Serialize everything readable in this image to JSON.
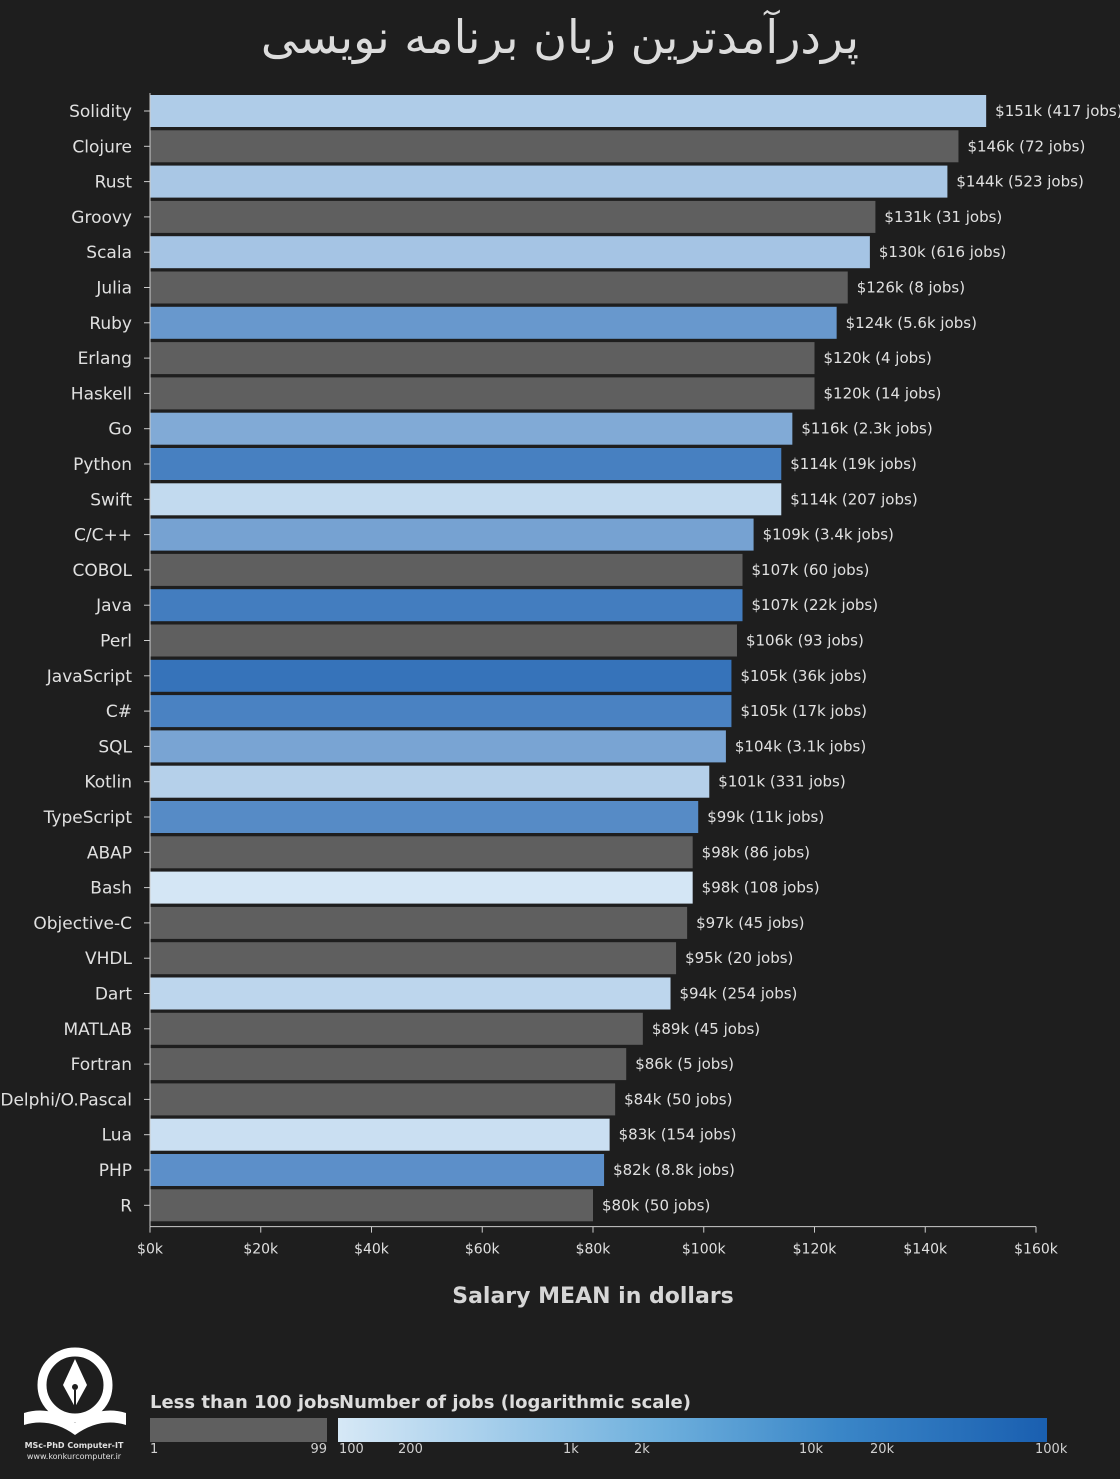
{
  "title": "پردرآمدترین زبان برنامه نویسی",
  "chart_data": {
    "type": "bar",
    "orientation": "horizontal",
    "title": "پردرآمدترین زبان برنامه نویسی",
    "xlabel": "Salary MEAN in dollars",
    "ylabel": "",
    "xlim": [
      0,
      160
    ],
    "x_unit": "thousand dollars",
    "x_ticks": [
      "$0k",
      "$20k",
      "$40k",
      "$60k",
      "$80k",
      "$100k",
      "$120k",
      "$140k",
      "$160k"
    ],
    "x_tick_values": [
      0,
      20,
      40,
      60,
      80,
      100,
      120,
      140,
      160
    ],
    "categories": [
      "Solidity",
      "Clojure",
      "Rust",
      "Groovy",
      "Scala",
      "Julia",
      "Ruby",
      "Erlang",
      "Haskell",
      "Go",
      "Python",
      "Swift",
      "C/C++",
      "COBOL",
      "Java",
      "Perl",
      "JavaScript",
      "C#",
      "SQL",
      "Kotlin",
      "TypeScript",
      "ABAP",
      "Bash",
      "Objective-C",
      "VHDL",
      "Dart",
      "MATLAB",
      "Fortran",
      "Delphi/O.Pascal",
      "Lua",
      "PHP",
      "R"
    ],
    "values": [
      151,
      146,
      144,
      131,
      130,
      126,
      124,
      120,
      120,
      116,
      114,
      114,
      109,
      107,
      107,
      106,
      105,
      105,
      104,
      101,
      99,
      98,
      98,
      97,
      95,
      94,
      89,
      86,
      84,
      83,
      82,
      80
    ],
    "jobs": [
      417,
      72,
      523,
      31,
      616,
      8,
      5600,
      4,
      14,
      2300,
      19000,
      207,
      3400,
      60,
      22000,
      93,
      36000,
      17000,
      3100,
      331,
      11000,
      86,
      108,
      45,
      20,
      254,
      45,
      5,
      50,
      154,
      8800,
      50
    ],
    "labels": [
      "$151k (417 jobs)",
      "$146k (72 jobs)",
      "$144k (523 jobs)",
      "$131k (31 jobs)",
      "$130k (616 jobs)",
      "$126k (8 jobs)",
      "$124k (5.6k jobs)",
      "$120k (4 jobs)",
      "$120k (14 jobs)",
      "$116k (2.3k jobs)",
      "$114k (19k jobs)",
      "$114k (207 jobs)",
      "$109k (3.4k jobs)",
      "$107k (60 jobs)",
      "$107k (22k jobs)",
      "$106k (93 jobs)",
      "$105k (36k jobs)",
      "$105k (17k jobs)",
      "$104k (3.1k jobs)",
      "$101k (331 jobs)",
      "$99k (11k jobs)",
      "$98k (86 jobs)",
      "$98k (108 jobs)",
      "$97k (45 jobs)",
      "$95k (20 jobs)",
      "$94k (254 jobs)",
      "$89k (45 jobs)",
      "$86k (5 jobs)",
      "$84k (50 jobs)",
      "$83k (154 jobs)",
      "$82k (8.8k jobs)",
      "$80k (50 jobs)"
    ],
    "colors": {
      "low_jobs": "#5f5f5f",
      "scale_start": "#d6e8f6",
      "scale_end": "#1a5fb0",
      "background": "#1e1e1e"
    }
  },
  "legend": {
    "low_label": "Less than 100 jobs",
    "scale_label": "Number of jobs (logarithmic scale)",
    "low_ticks": [
      "1",
      "99"
    ],
    "scale_ticks": [
      "100",
      "200",
      "1k",
      "2k",
      "10k",
      "20k",
      "100k"
    ],
    "scale_tick_values": [
      100,
      200,
      1000,
      2000,
      10000,
      20000,
      100000
    ]
  },
  "logo": {
    "name": "MSc-PhD Computer-IT",
    "url_text": "www.konkurcomputer.ir"
  }
}
